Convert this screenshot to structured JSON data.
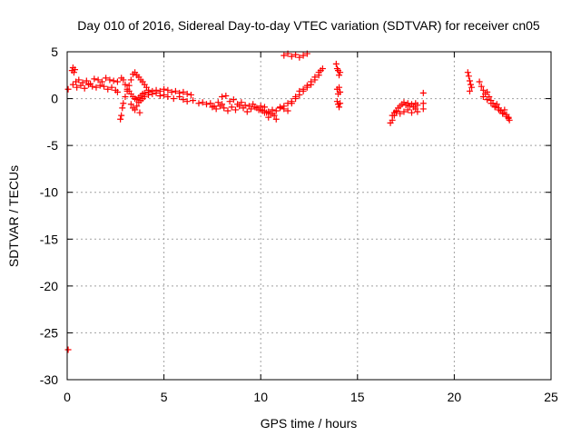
{
  "chart_data": {
    "type": "scatter",
    "title": "Day 010 of 2016, Sidereal Day-to-day VTEC variation (SDTVAR) for receiver cn05",
    "xlabel": "GPS time / hours",
    "ylabel": "SDTVAR / TECUs",
    "xlim": [
      0,
      25
    ],
    "ylim": [
      -30,
      5
    ],
    "xticks": [
      0,
      5,
      10,
      15,
      20,
      25
    ],
    "yticks": [
      5,
      0,
      -5,
      -10,
      -15,
      -20,
      -25,
      -30
    ],
    "xtick_labels": [
      "0",
      "5",
      "10",
      "15",
      "20",
      "25"
    ],
    "ytick_labels": [
      "5",
      "0",
      "-5",
      "-10",
      "-15",
      "-20",
      "-25",
      "-30"
    ],
    "grid": true,
    "marker": "plus",
    "color": "#ff0000",
    "series": [
      {
        "name": "cn05",
        "x": [
          0.05,
          0.25,
          0.3,
          0.35,
          0.4,
          0.3,
          0.45,
          0.6,
          0.8,
          1.0,
          1.2,
          1.4,
          1.6,
          1.8,
          2.0,
          2.2,
          2.4,
          2.6,
          0.5,
          0.7,
          0.9,
          1.1,
          1.3,
          1.5,
          1.7,
          1.9,
          2.1,
          2.3,
          2.5,
          2.6,
          2.75,
          2.8,
          2.85,
          2.9,
          3.0,
          3.1,
          3.2,
          3.3,
          3.4,
          3.5,
          3.6,
          3.7,
          3.8,
          3.9,
          4.0,
          4.1,
          4.2,
          2.8,
          2.9,
          3.0,
          3.1,
          3.2,
          3.3,
          3.4,
          3.5,
          3.6,
          3.7,
          3.8,
          3.9,
          4.0,
          4.2,
          4.4,
          4.6,
          4.8,
          5.0,
          5.2,
          5.4,
          5.6,
          5.8,
          6.0,
          6.2,
          6.4,
          3.3,
          3.4,
          3.5,
          3.6,
          3.7,
          3.75,
          3.8,
          3.9,
          4.0,
          4.2,
          4.4,
          4.6,
          4.8,
          5.0,
          5.2,
          5.5,
          5.8,
          6.0,
          6.2,
          6.5,
          6.8,
          7.0,
          7.2,
          7.4,
          7.6,
          7.8,
          8.0,
          7.5,
          7.7,
          7.9,
          8.1,
          8.3,
          8.5,
          8.7,
          8.9,
          9.1,
          9.3,
          9.5,
          9.7,
          9.9,
          10.1,
          10.3,
          8.0,
          8.2,
          8.4,
          8.6,
          8.8,
          9.0,
          9.2,
          9.4,
          9.6,
          9.8,
          10.0,
          10.2,
          10.4,
          10.6,
          10.8,
          10.0,
          10.2,
          10.4,
          10.5,
          10.6,
          10.7,
          10.8,
          11.0,
          11.2,
          11.4,
          11.6,
          11.8,
          12.0,
          12.2,
          12.4,
          12.6,
          12.8,
          13.0,
          13.1,
          11.0,
          11.2,
          11.4,
          11.6,
          11.8,
          12.0,
          12.2,
          12.4,
          12.6,
          12.8,
          13.0,
          13.2,
          11.2,
          11.4,
          11.6,
          11.8,
          12.0,
          12.2,
          12.4,
          13.9,
          13.95,
          14.0,
          14.05,
          14.1,
          13.95,
          14.0,
          14.05,
          14.1,
          13.95,
          14.0,
          14.05,
          14.1,
          16.7,
          16.8,
          16.9,
          17.0,
          17.1,
          17.2,
          17.3,
          17.4,
          17.5,
          17.6,
          17.7,
          17.8,
          17.9,
          18.0,
          18.1,
          16.8,
          16.9,
          17.0,
          17.2,
          17.4,
          17.6,
          17.8,
          18.0,
          18.1,
          18.4,
          18.4,
          18.4,
          20.7,
          20.75,
          20.8,
          20.85,
          20.9,
          20.8,
          21.3,
          21.4,
          21.5,
          21.6,
          21.7,
          21.8,
          21.9,
          22.0,
          22.1,
          22.2,
          22.3,
          22.4,
          22.5,
          22.6,
          22.7,
          22.8,
          22.85,
          21.5,
          21.7,
          21.9,
          22.1,
          22.3,
          22.5,
          22.7,
          22.8,
          0.05
        ],
        "y": [
          1.0,
          3.0,
          3.3,
          2.8,
          3.1,
          1.5,
          1.8,
          2.0,
          1.7,
          1.9,
          1.6,
          2.1,
          2.0,
          1.8,
          2.2,
          2.0,
          1.9,
          1.8,
          1.2,
          1.4,
          1.1,
          1.5,
          1.3,
          1.2,
          1.4,
          1.3,
          1.0,
          1.2,
          0.9,
          0.7,
          -2.2,
          -1.8,
          -1.0,
          -0.5,
          0.2,
          0.8,
          1.4,
          2.0,
          2.6,
          2.8,
          2.5,
          2.3,
          2.0,
          1.8,
          1.5,
          1.2,
          0.9,
          2.2,
          2.0,
          1.5,
          1.0,
          0.8,
          0.5,
          0.2,
          0.0,
          -0.1,
          0.1,
          0.3,
          0.5,
          0.6,
          0.7,
          0.8,
          0.9,
          0.8,
          1.0,
          0.9,
          0.7,
          0.8,
          0.6,
          0.7,
          0.5,
          0.4,
          -0.6,
          -1.0,
          -1.2,
          -0.8,
          -0.4,
          -1.5,
          -0.2,
          0.0,
          0.2,
          0.4,
          0.5,
          0.6,
          0.3,
          0.4,
          0.2,
          0.0,
          0.2,
          -0.1,
          -0.3,
          -0.2,
          -0.5,
          -0.4,
          -0.6,
          -0.5,
          -0.8,
          -0.4,
          -0.6,
          -0.9,
          -1.1,
          -0.8,
          -1.0,
          -1.3,
          -0.9,
          -1.2,
          -0.8,
          -1.0,
          -1.4,
          -1.1,
          -0.9,
          -1.2,
          -1.3,
          -1.5,
          0.2,
          0.3,
          -0.3,
          -0.1,
          -0.6,
          -0.4,
          -0.7,
          -0.8,
          -0.6,
          -1.0,
          -1.2,
          -0.9,
          -1.4,
          -1.6,
          -2.2,
          -0.8,
          -1.5,
          -2.0,
          -1.6,
          -1.2,
          -1.8,
          -1.3,
          -0.9,
          -0.8,
          -0.5,
          -0.3,
          0.0,
          0.4,
          0.8,
          1.2,
          1.5,
          2.0,
          2.5,
          3.0,
          -1.0,
          -1.1,
          -1.3,
          -0.5,
          0.2,
          0.8,
          1.0,
          1.4,
          1.8,
          2.3,
          2.8,
          3.2,
          4.6,
          4.8,
          4.5,
          4.7,
          4.4,
          4.6,
          4.8,
          3.7,
          3.2,
          3.0,
          2.5,
          2.8,
          1.0,
          0.5,
          1.2,
          0.7,
          -0.3,
          -0.6,
          -0.9,
          -0.5,
          -2.6,
          -2.3,
          -1.8,
          -1.4,
          -1.0,
          -0.8,
          -0.6,
          -0.4,
          -0.7,
          -0.5,
          -0.8,
          -0.6,
          -0.9,
          -0.5,
          -0.7,
          -1.8,
          -1.5,
          -1.3,
          -1.6,
          -1.4,
          -1.2,
          -1.5,
          -1.1,
          -1.4,
          0.6,
          -0.5,
          -1.1,
          2.8,
          2.4,
          1.9,
          1.5,
          1.2,
          0.8,
          1.8,
          1.3,
          0.9,
          0.5,
          0.7,
          0.2,
          -0.2,
          -0.5,
          -0.8,
          -0.6,
          -1.0,
          -1.3,
          -1.5,
          -1.2,
          -1.7,
          -2.0,
          -2.3,
          0.2,
          -0.1,
          -0.5,
          -0.9,
          -1.2,
          -1.6,
          -1.9,
          -2.1,
          -26.8
        ]
      }
    ]
  }
}
